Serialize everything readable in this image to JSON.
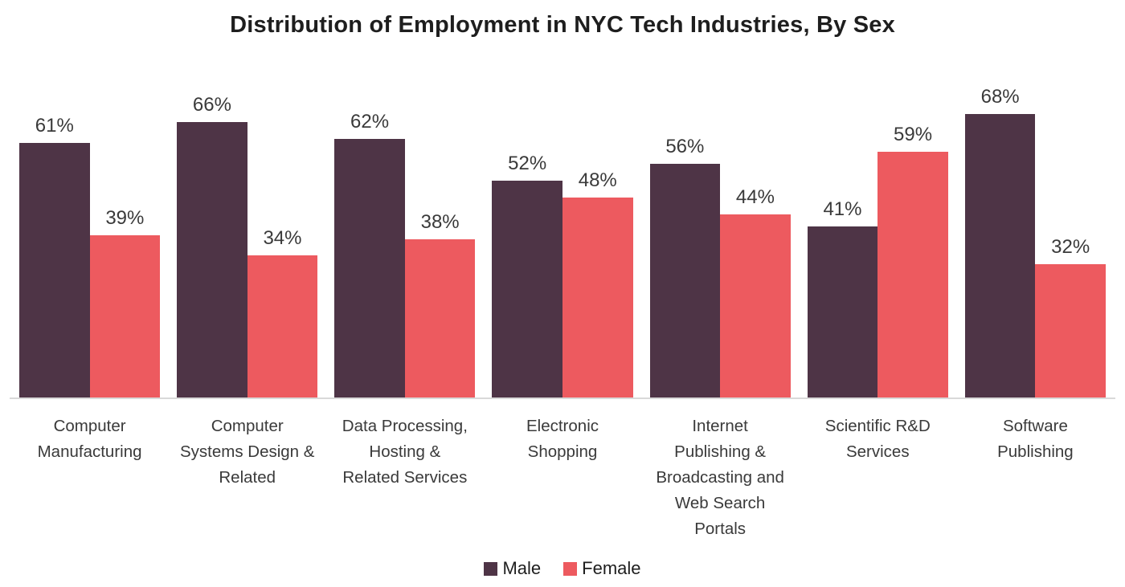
{
  "chart_data": {
    "type": "bar",
    "title": "Distribution of Employment in NYC Tech Industries, By Sex",
    "categories": [
      "Computer\nManufacturing",
      "Computer\nSystems Design &\nRelated",
      "Data Processing,\nHosting &\nRelated Services",
      "Electronic\nShopping",
      "Internet\nPublishing &\nBroadcasting and\nWeb  Search\nPortals",
      "Scientific R&D\nServices",
      "Software\nPublishing"
    ],
    "series": [
      {
        "name": "Male",
        "color": "#4e3446",
        "values": [
          61,
          66,
          62,
          52,
          56,
          41,
          68
        ]
      },
      {
        "name": "Female",
        "color": "#ed5a5f",
        "values": [
          39,
          34,
          38,
          48,
          44,
          59,
          32
        ]
      }
    ],
    "value_suffix": "%",
    "ylim": [
      0,
      100
    ],
    "grid": false,
    "legend_position": "bottom",
    "axis_line_color": "#d9d9d9",
    "label_text_color": "#3a3a3a"
  }
}
